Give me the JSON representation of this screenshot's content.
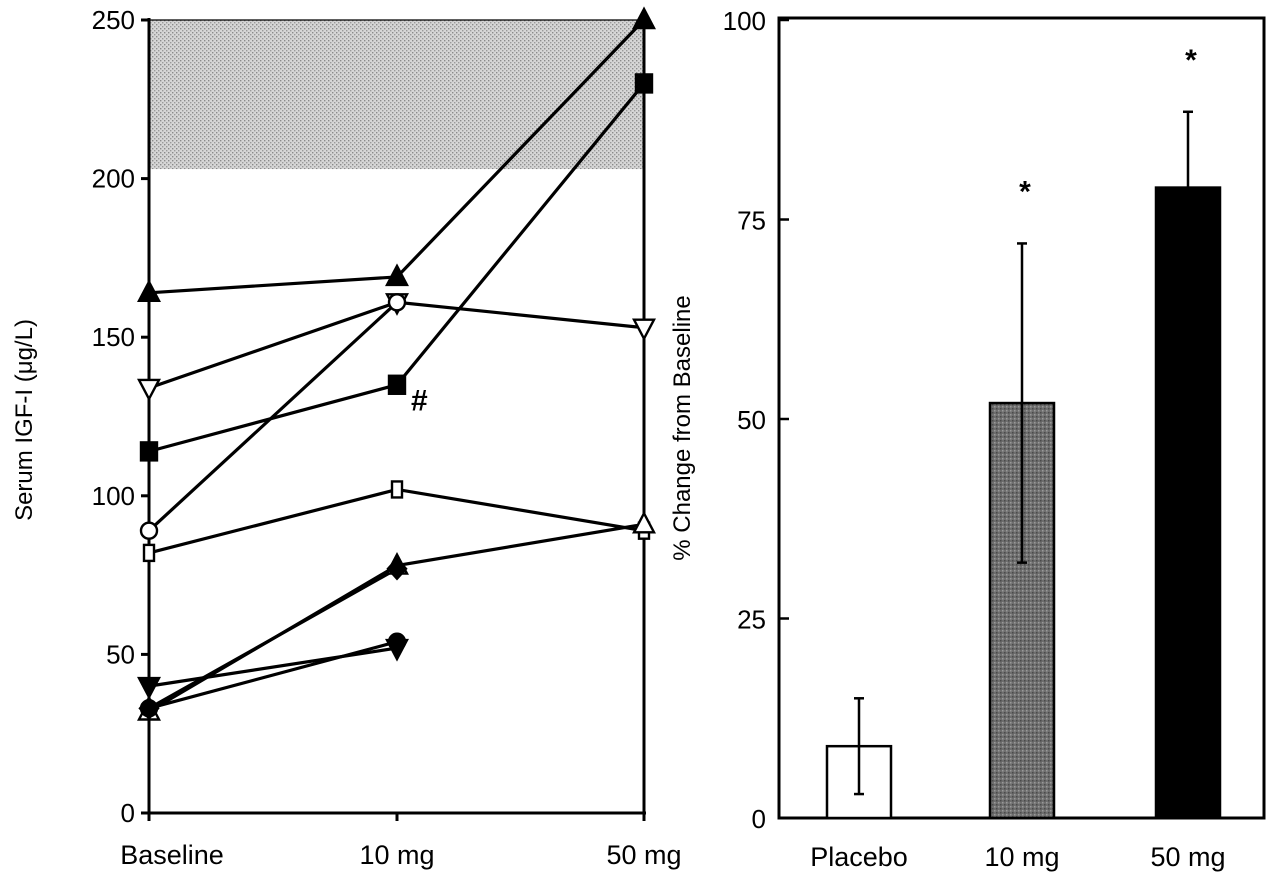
{
  "chart_data": [
    {
      "type": "line",
      "ylabel": "Serum IGF-I (μg/L)",
      "xlabel": "",
      "categories": [
        "Baseline",
        "10 mg",
        "50 mg"
      ],
      "ylim": [
        0,
        250
      ],
      "yticks": [
        0,
        50,
        100,
        150,
        200,
        250
      ],
      "shaded_range": [
        203,
        250
      ],
      "series": [
        {
          "marker": "triangle-up",
          "fill": "filled",
          "values": [
            164,
            169,
            250
          ]
        },
        {
          "marker": "square",
          "fill": "filled",
          "values": [
            114,
            135,
            230
          ]
        },
        {
          "marker": "triangle-down",
          "fill": "open",
          "values": [
            134,
            161,
            153
          ]
        },
        {
          "marker": "circle",
          "fill": "open",
          "values": [
            89,
            161,
            null
          ]
        },
        {
          "marker": "square",
          "fill": "open",
          "values": [
            82,
            102,
            89
          ]
        },
        {
          "marker": "triangle-up",
          "fill": "open",
          "values": [
            32,
            78,
            91
          ]
        },
        {
          "marker": "diamond",
          "fill": "filled",
          "values": [
            33,
            77,
            null
          ]
        },
        {
          "marker": "triangle-down",
          "fill": "filled",
          "values": [
            40,
            52,
            null
          ]
        },
        {
          "marker": "circle",
          "fill": "filled",
          "values": [
            33,
            54,
            null
          ]
        }
      ],
      "annotations": [
        {
          "text": "#",
          "x": "10 mg",
          "y": 130
        }
      ]
    },
    {
      "type": "bar",
      "ylabel": "% Change from Baseline",
      "xlabel": "",
      "categories": [
        "Placebo",
        "10 mg",
        "50 mg"
      ],
      "values": [
        9,
        52,
        79
      ],
      "errors": [
        6,
        20,
        9.5
      ],
      "fills": [
        "#ffffff",
        "#7a7a7a",
        "#000000"
      ],
      "ylim": [
        0,
        100
      ],
      "yticks": [
        0,
        25,
        50,
        75,
        100
      ],
      "significance": [
        "",
        "*",
        "*"
      ]
    }
  ]
}
